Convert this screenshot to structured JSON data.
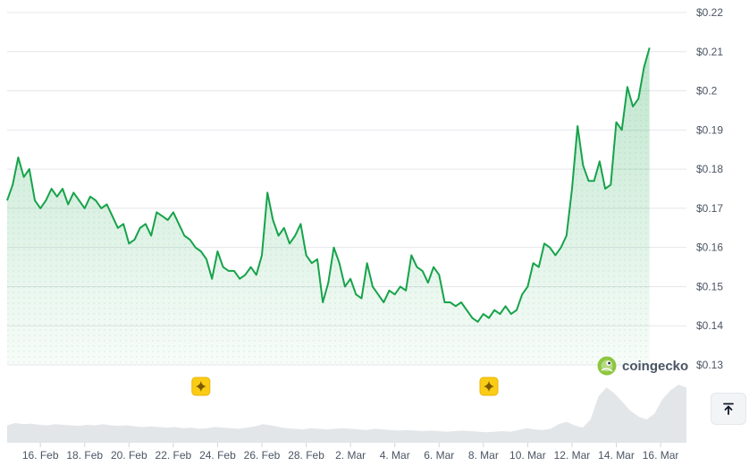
{
  "chart_data": {
    "type": "area",
    "title": "",
    "xlabel": "",
    "ylabel": "",
    "y_tick_labels": [
      "$0.13",
      "$0.14",
      "$0.15",
      "$0.16",
      "$0.17",
      "$0.18",
      "$0.19",
      "$0.2",
      "$0.21",
      "$0.22"
    ],
    "y_ticks": [
      0.13,
      0.14,
      0.15,
      0.16,
      0.17,
      0.18,
      0.19,
      0.2,
      0.21,
      0.22
    ],
    "ylim": [
      0.13,
      0.22
    ],
    "xlim": [
      "2025-02-14T12:00",
      "2025-03-17T04:00"
    ],
    "x_tick_labels": [
      "16. Feb",
      "18. Feb",
      "20. Feb",
      "22. Feb",
      "24. Feb",
      "26. Feb",
      "28. Feb",
      "2. Mar",
      "4. Mar",
      "6. Mar",
      "8. Mar",
      "10. Mar",
      "12. Mar",
      "14. Mar",
      "16. Mar"
    ],
    "x_ticks": [
      "2025-02-16",
      "2025-02-18",
      "2025-02-20",
      "2025-02-22",
      "2025-02-24",
      "2025-02-26",
      "2025-02-28",
      "2025-03-02",
      "2025-03-04",
      "2025-03-06",
      "2025-03-08",
      "2025-03-10",
      "2025-03-12",
      "2025-03-14",
      "2025-03-16"
    ],
    "grid": true,
    "series": [
      {
        "color": "#16a34a",
        "points": [
          [
            "2025-02-14T12:00",
            0.172
          ],
          [
            "2025-02-14T18:00",
            0.176
          ],
          [
            "2025-02-15T00:00",
            0.183
          ],
          [
            "2025-02-15T06:00",
            0.178
          ],
          [
            "2025-02-15T12:00",
            0.18
          ],
          [
            "2025-02-15T18:00",
            0.172
          ],
          [
            "2025-02-16T00:00",
            0.17
          ],
          [
            "2025-02-16T06:00",
            0.172
          ],
          [
            "2025-02-16T12:00",
            0.175
          ],
          [
            "2025-02-16T18:00",
            0.173
          ],
          [
            "2025-02-17T00:00",
            0.175
          ],
          [
            "2025-02-17T06:00",
            0.171
          ],
          [
            "2025-02-17T12:00",
            0.174
          ],
          [
            "2025-02-17T18:00",
            0.172
          ],
          [
            "2025-02-18T00:00",
            0.17
          ],
          [
            "2025-02-18T06:00",
            0.173
          ],
          [
            "2025-02-18T12:00",
            0.172
          ],
          [
            "2025-02-18T18:00",
            0.17
          ],
          [
            "2025-02-19T00:00",
            0.171
          ],
          [
            "2025-02-19T06:00",
            0.168
          ],
          [
            "2025-02-19T12:00",
            0.165
          ],
          [
            "2025-02-19T18:00",
            0.166
          ],
          [
            "2025-02-20T00:00",
            0.161
          ],
          [
            "2025-02-20T06:00",
            0.162
          ],
          [
            "2025-02-20T12:00",
            0.165
          ],
          [
            "2025-02-20T18:00",
            0.166
          ],
          [
            "2025-02-21T00:00",
            0.163
          ],
          [
            "2025-02-21T06:00",
            0.169
          ],
          [
            "2025-02-21T12:00",
            0.168
          ],
          [
            "2025-02-21T18:00",
            0.167
          ],
          [
            "2025-02-22T00:00",
            0.169
          ],
          [
            "2025-02-22T06:00",
            0.166
          ],
          [
            "2025-02-22T12:00",
            0.163
          ],
          [
            "2025-02-22T18:00",
            0.162
          ],
          [
            "2025-02-23T00:00",
            0.16
          ],
          [
            "2025-02-23T06:00",
            0.159
          ],
          [
            "2025-02-23T12:00",
            0.157
          ],
          [
            "2025-02-23T18:00",
            0.152
          ],
          [
            "2025-02-24T00:00",
            0.159
          ],
          [
            "2025-02-24T06:00",
            0.155
          ],
          [
            "2025-02-24T12:00",
            0.154
          ],
          [
            "2025-02-24T18:00",
            0.154
          ],
          [
            "2025-02-25T00:00",
            0.152
          ],
          [
            "2025-02-25T06:00",
            0.153
          ],
          [
            "2025-02-25T12:00",
            0.155
          ],
          [
            "2025-02-25T18:00",
            0.153
          ],
          [
            "2025-02-26T00:00",
            0.158
          ],
          [
            "2025-02-26T06:00",
            0.174
          ],
          [
            "2025-02-26T12:00",
            0.167
          ],
          [
            "2025-02-26T18:00",
            0.163
          ],
          [
            "2025-02-27T00:00",
            0.165
          ],
          [
            "2025-02-27T06:00",
            0.161
          ],
          [
            "2025-02-27T12:00",
            0.163
          ],
          [
            "2025-02-27T18:00",
            0.166
          ],
          [
            "2025-02-28T00:00",
            0.158
          ],
          [
            "2025-02-28T06:00",
            0.156
          ],
          [
            "2025-02-28T12:00",
            0.157
          ],
          [
            "2025-02-28T18:00",
            0.146
          ],
          [
            "2025-03-01T00:00",
            0.151
          ],
          [
            "2025-03-01T06:00",
            0.16
          ],
          [
            "2025-03-01T12:00",
            0.156
          ],
          [
            "2025-03-01T18:00",
            0.15
          ],
          [
            "2025-03-02T00:00",
            0.152
          ],
          [
            "2025-03-02T06:00",
            0.148
          ],
          [
            "2025-03-02T12:00",
            0.147
          ],
          [
            "2025-03-02T18:00",
            0.156
          ],
          [
            "2025-03-03T00:00",
            0.15
          ],
          [
            "2025-03-03T06:00",
            0.148
          ],
          [
            "2025-03-03T12:00",
            0.146
          ],
          [
            "2025-03-03T18:00",
            0.149
          ],
          [
            "2025-03-04T00:00",
            0.148
          ],
          [
            "2025-03-04T06:00",
            0.15
          ],
          [
            "2025-03-04T12:00",
            0.149
          ],
          [
            "2025-03-04T18:00",
            0.158
          ],
          [
            "2025-03-05T00:00",
            0.155
          ],
          [
            "2025-03-05T06:00",
            0.154
          ],
          [
            "2025-03-05T12:00",
            0.151
          ],
          [
            "2025-03-05T18:00",
            0.155
          ],
          [
            "2025-03-06T00:00",
            0.153
          ],
          [
            "2025-03-06T06:00",
            0.146
          ],
          [
            "2025-03-06T12:00",
            0.146
          ],
          [
            "2025-03-06T18:00",
            0.145
          ],
          [
            "2025-03-07T00:00",
            0.146
          ],
          [
            "2025-03-07T06:00",
            0.144
          ],
          [
            "2025-03-07T12:00",
            0.142
          ],
          [
            "2025-03-07T18:00",
            0.141
          ],
          [
            "2025-03-08T00:00",
            0.143
          ],
          [
            "2025-03-08T06:00",
            0.142
          ],
          [
            "2025-03-08T12:00",
            0.144
          ],
          [
            "2025-03-08T18:00",
            0.143
          ],
          [
            "2025-03-09T00:00",
            0.145
          ],
          [
            "2025-03-09T06:00",
            0.143
          ],
          [
            "2025-03-09T12:00",
            0.144
          ],
          [
            "2025-03-09T18:00",
            0.148
          ],
          [
            "2025-03-10T00:00",
            0.15
          ],
          [
            "2025-03-10T06:00",
            0.156
          ],
          [
            "2025-03-10T12:00",
            0.155
          ],
          [
            "2025-03-10T18:00",
            0.161
          ],
          [
            "2025-03-11T00:00",
            0.16
          ],
          [
            "2025-03-11T06:00",
            0.158
          ],
          [
            "2025-03-11T12:00",
            0.16
          ],
          [
            "2025-03-11T18:00",
            0.163
          ],
          [
            "2025-03-12T00:00",
            0.175
          ],
          [
            "2025-03-12T06:00",
            0.191
          ],
          [
            "2025-03-12T12:00",
            0.181
          ],
          [
            "2025-03-12T18:00",
            0.177
          ],
          [
            "2025-03-13T00:00",
            0.177
          ],
          [
            "2025-03-13T06:00",
            0.182
          ],
          [
            "2025-03-13T12:00",
            0.175
          ],
          [
            "2025-03-13T18:00",
            0.176
          ],
          [
            "2025-03-14T00:00",
            0.192
          ],
          [
            "2025-03-14T06:00",
            0.19
          ],
          [
            "2025-03-14T12:00",
            0.201
          ],
          [
            "2025-03-14T18:00",
            0.196
          ],
          [
            "2025-03-15T00:00",
            0.198
          ],
          [
            "2025-03-15T06:00",
            0.206
          ],
          [
            "2025-03-15T12:00",
            0.211
          ]
        ]
      }
    ],
    "volume_relative": [
      0.3,
      0.34,
      0.32,
      0.33,
      0.31,
      0.3,
      0.32,
      0.31,
      0.3,
      0.29,
      0.31,
      0.3,
      0.32,
      0.3,
      0.29,
      0.3,
      0.28,
      0.27,
      0.28,
      0.27,
      0.26,
      0.27,
      0.25,
      0.26,
      0.24,
      0.25,
      0.27,
      0.26,
      0.25,
      0.24,
      0.26,
      0.28,
      0.32,
      0.3,
      0.27,
      0.25,
      0.24,
      0.23,
      0.25,
      0.24,
      0.23,
      0.24,
      0.25,
      0.24,
      0.23,
      0.22,
      0.24,
      0.23,
      0.22,
      0.21,
      0.22,
      0.21,
      0.2,
      0.21,
      0.2,
      0.19,
      0.2,
      0.21,
      0.2,
      0.19,
      0.18,
      0.19,
      0.2,
      0.19,
      0.22,
      0.25,
      0.23,
      0.22,
      0.24,
      0.32,
      0.36,
      0.3,
      0.26,
      0.4,
      0.8,
      0.95,
      0.85,
      0.7,
      0.55,
      0.45,
      0.4,
      0.5,
      0.75,
      0.9,
      1.0,
      0.95
    ]
  },
  "watermark": {
    "text": "coingecko",
    "icon": "gecko-logo-icon"
  },
  "markers": [
    {
      "x": "2025-02-23T06:00",
      "icon": "sparkle-icon"
    },
    {
      "x": "2025-03-08T06:00",
      "icon": "sparkle-icon"
    }
  ],
  "scroll_top_button": {
    "icon": "arrow-up-to-line-icon"
  }
}
